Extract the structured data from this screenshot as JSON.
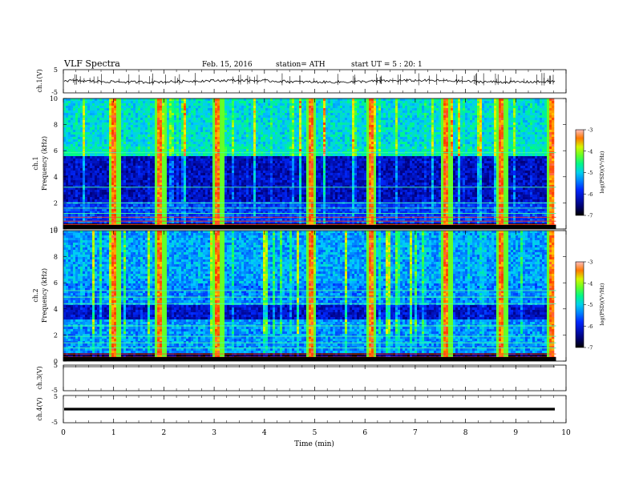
{
  "header": {
    "title": "VLF Spectra",
    "date": "Feb. 15, 2016",
    "station": "station= ATH",
    "start": "start UT = 5 : 20: 1"
  },
  "chart_data": [
    {
      "type": "line",
      "panel": "ch1-waveform",
      "ylabel": "ch.1(V)",
      "ylim": [
        -5,
        5
      ],
      "yticks": [
        "5",
        "-5"
      ],
      "xlim": [
        0,
        10
      ],
      "baseline": 0
    },
    {
      "type": "heatmap",
      "panel": "ch1-spectrogram",
      "ylabel_top": "ch.1",
      "ylabel": "Frequency (kHz)",
      "ylim": [
        0,
        10
      ],
      "yticks": [
        "0",
        "2",
        "4",
        "6",
        "8",
        "10"
      ],
      "xlim": [
        0,
        9.8
      ],
      "colorbar": {
        "label": "log(PSD)(V²/Hz)",
        "range": [
          -7,
          -3
        ],
        "ticks": [
          "-3",
          "-4",
          "-5",
          "-6",
          "-7"
        ]
      },
      "bursts_min": [
        1.0,
        1.9,
        3.05,
        4.9,
        6.1,
        7.6,
        8.7,
        9.7
      ]
    },
    {
      "type": "heatmap",
      "panel": "ch2-spectrogram",
      "ylabel_top": "ch.2",
      "ylabel": "Frequency (kHz)",
      "ylim": [
        0,
        10
      ],
      "yticks": [
        "0",
        "2",
        "4",
        "6",
        "8",
        "10"
      ],
      "xlim": [
        0,
        9.8
      ],
      "colorbar": {
        "label": "log(PSD)(V²/Hz)",
        "range": [
          -7,
          -3
        ],
        "ticks": [
          "-3",
          "-4",
          "-5",
          "-6",
          "-7"
        ]
      },
      "bursts_min": [
        1.0,
        1.9,
        3.05,
        4.9,
        6.1,
        7.6,
        8.7,
        9.7
      ]
    },
    {
      "type": "line",
      "panel": "ch3-waveform",
      "ylabel": "ch.3(V)",
      "ylim": [
        -5,
        5
      ],
      "yticks": [
        "5",
        "-5"
      ],
      "xlim": [
        0,
        10
      ],
      "baseline": 5
    },
    {
      "type": "line",
      "panel": "ch4-waveform",
      "ylabel": "ch.4(V)",
      "ylim": [
        -5,
        5
      ],
      "yticks": [
        "5",
        "-5"
      ],
      "xlim": [
        0,
        10
      ],
      "baseline": 0
    }
  ],
  "xaxis": {
    "label": "Time (min)",
    "ticks": [
      "0",
      "1",
      "2",
      "3",
      "4",
      "5",
      "6",
      "7",
      "8",
      "9",
      "10"
    ],
    "range": [
      0,
      10
    ]
  },
  "colors": {
    "low": "#000080",
    "mid": "#00c8ff",
    "high": "#ffff00",
    "max": "#ff0000"
  }
}
